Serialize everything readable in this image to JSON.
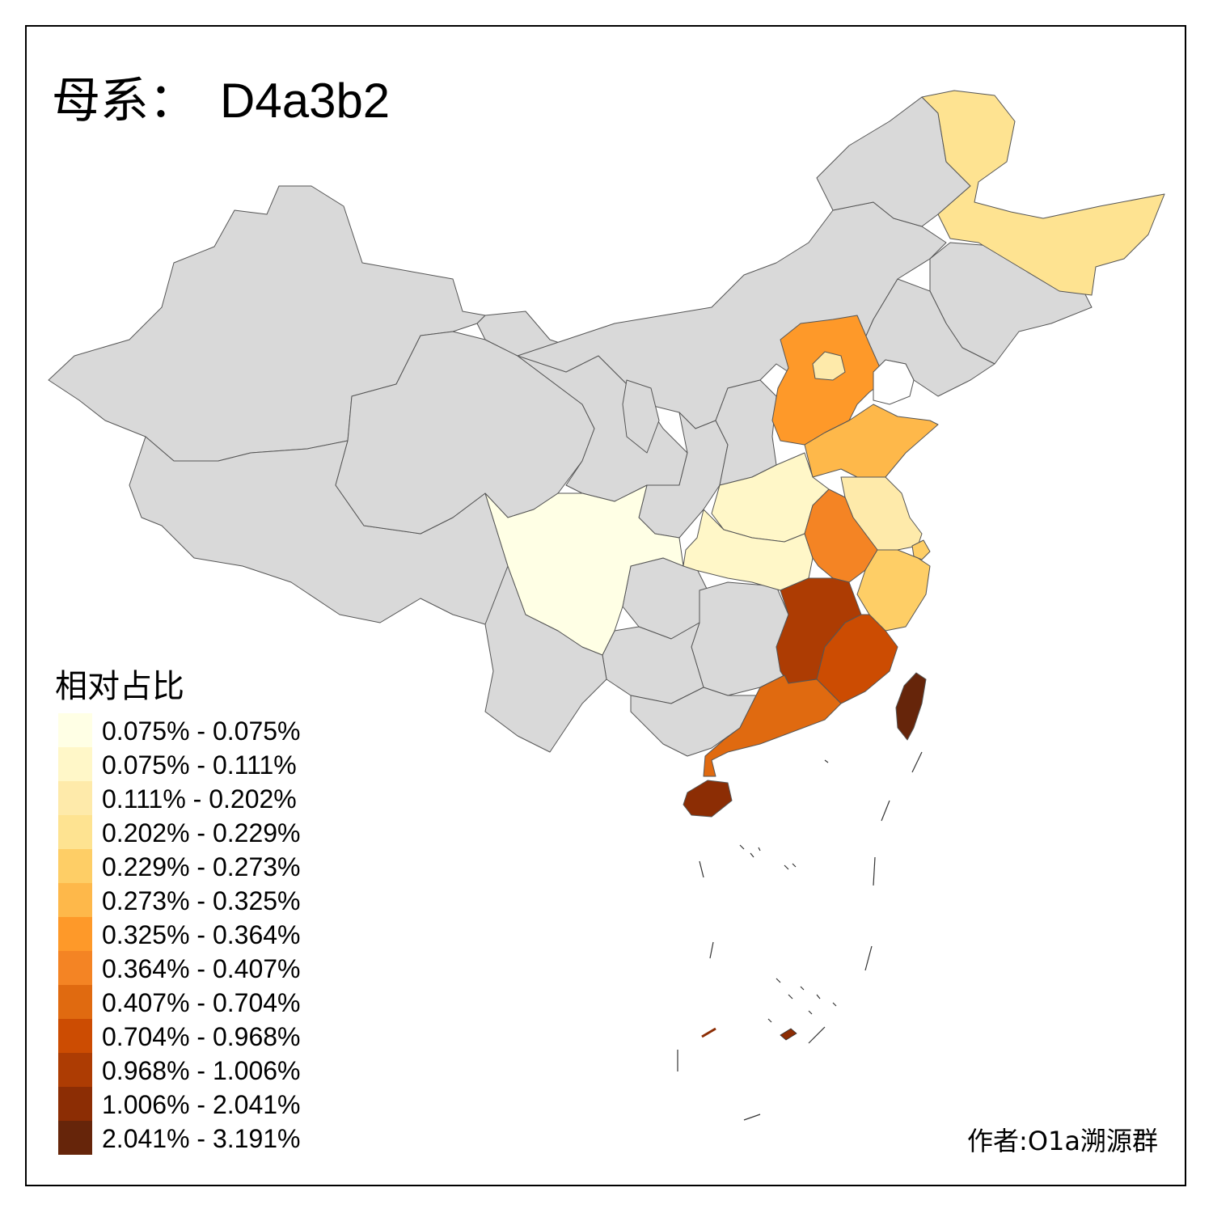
{
  "title": {
    "label": "母系：",
    "code": "D4a3b2"
  },
  "legend": {
    "title": "相对占比",
    "items": [
      {
        "label": "0.075% - 0.075%",
        "color": "#ffffe5"
      },
      {
        "label": "0.075% - 0.111%",
        "color": "#fff7c8"
      },
      {
        "label": "0.111% - 0.202%",
        "color": "#feeaaa"
      },
      {
        "label": "0.202% - 0.229%",
        "color": "#fee391"
      },
      {
        "label": "0.229% - 0.273%",
        "color": "#fece66"
      },
      {
        "label": "0.273% - 0.325%",
        "color": "#feb84a"
      },
      {
        "label": "0.325% - 0.364%",
        "color": "#fe9929"
      },
      {
        "label": "0.364% - 0.407%",
        "color": "#f48424"
      },
      {
        "label": "0.407% - 0.704%",
        "color": "#e06a10"
      },
      {
        "label": "0.704% - 0.968%",
        "color": "#cc4c02"
      },
      {
        "label": "0.968% - 1.006%",
        "color": "#ad3c03"
      },
      {
        "label": "1.006% - 2.041%",
        "color": "#8c2d04"
      },
      {
        "label": "2.041% - 3.191%",
        "color": "#66250a"
      }
    ]
  },
  "author": "作者:O1a溯源群",
  "map": {
    "no_data_color": "#d9d9d9",
    "regions": [
      {
        "name": "heilongjiang",
        "class": 3
      },
      {
        "name": "beijing",
        "class": 2
      },
      {
        "name": "hebei",
        "class": 6
      },
      {
        "name": "shandong",
        "class": 5
      },
      {
        "name": "henan",
        "class": 1
      },
      {
        "name": "hubei",
        "class": 1
      },
      {
        "name": "jiangsu",
        "class": 2
      },
      {
        "name": "shanghai",
        "class": 4
      },
      {
        "name": "anhui",
        "class": 7
      },
      {
        "name": "zhejiang",
        "class": 4
      },
      {
        "name": "jiangxi",
        "class": 10
      },
      {
        "name": "fujian",
        "class": 9
      },
      {
        "name": "guangdong",
        "class": 8
      },
      {
        "name": "hainan",
        "class": 11
      },
      {
        "name": "taiwan",
        "class": 12
      },
      {
        "name": "sichuan",
        "class": 0
      }
    ]
  }
}
